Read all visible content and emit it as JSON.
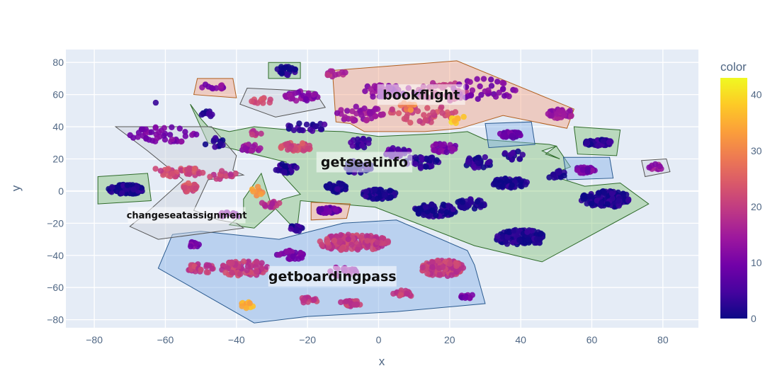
{
  "chart_data": {
    "type": "scatter",
    "xlabel": "x",
    "ylabel": "y",
    "xlim": [
      -88,
      90
    ],
    "ylim": [
      -85,
      88
    ],
    "xticks": [
      -80,
      -60,
      -40,
      -20,
      0,
      20,
      40,
      60,
      80
    ],
    "yticks": [
      -80,
      -60,
      -40,
      -20,
      0,
      20,
      40,
      60,
      80
    ],
    "xtick_labels": [
      "−80",
      "−60",
      "−40",
      "−20",
      "0",
      "20",
      "40",
      "60",
      "80"
    ],
    "ytick_labels": [
      "−80",
      "−60",
      "−40",
      "−20",
      "0",
      "20",
      "40",
      "60",
      "80"
    ],
    "grid": true,
    "colorbar": {
      "title": "color",
      "range": [
        0,
        43
      ],
      "ticks": [
        0,
        10,
        20,
        30,
        40
      ],
      "tick_labels": [
        "0",
        "10",
        "20",
        "30",
        "40"
      ],
      "colorscale": [
        "#0d0887",
        "#46039f",
        "#7201a8",
        "#9c179e",
        "#bd3786",
        "#d8576b",
        "#ed7953",
        "#fb9f3a",
        "#fdca26",
        "#f0f921"
      ]
    },
    "regions": [
      {
        "label": "bookflight",
        "fill": "#f4a582",
        "stroke": "#b2601f",
        "label_pos": [
          12,
          60
        ],
        "label_size": 19,
        "polygon": [
          [
            -13,
            75
          ],
          [
            22,
            81
          ],
          [
            55,
            51
          ],
          [
            53,
            39
          ],
          [
            35,
            47
          ],
          [
            23,
            39
          ],
          [
            18,
            38
          ],
          [
            13,
            37
          ],
          [
            8,
            37
          ],
          [
            -4,
            37
          ],
          [
            -8,
            42
          ],
          [
            -12,
            43
          ]
        ]
      },
      {
        "label": "getseatinfo",
        "fill": "#86c37a",
        "stroke": "#2f6b2a",
        "label_pos": [
          -4,
          18
        ],
        "label_size": 19,
        "polygon": [
          [
            -53,
            54
          ],
          [
            -50,
            45
          ],
          [
            -48,
            40
          ],
          [
            -42,
            37
          ],
          [
            -35,
            40
          ],
          [
            -25,
            38
          ],
          [
            -10,
            37
          ],
          [
            0,
            34
          ],
          [
            20,
            36
          ],
          [
            25,
            37
          ],
          [
            30,
            32
          ],
          [
            48,
            29
          ],
          [
            50,
            28
          ],
          [
            46,
            25
          ],
          [
            51,
            20
          ],
          [
            47,
            23
          ],
          [
            50,
            28
          ],
          [
            54,
            15
          ],
          [
            48,
            10
          ],
          [
            58,
            3
          ],
          [
            68,
            5
          ],
          [
            76,
            -8
          ],
          [
            46,
            -44
          ],
          [
            27,
            -34
          ],
          [
            -1,
            -10
          ],
          [
            -22,
            -6
          ],
          [
            -23,
            -25
          ],
          [
            -29,
            -11
          ],
          [
            -35,
            -23
          ],
          [
            -42,
            -21
          ],
          [
            -38,
            -14
          ],
          [
            -38,
            -5
          ],
          [
            -33,
            11
          ],
          [
            -30,
            -10
          ],
          [
            -27,
            -5
          ],
          [
            -22,
            -2
          ],
          [
            -27,
            10
          ],
          [
            -26,
            18
          ],
          [
            -48,
            30
          ]
        ]
      },
      {
        "label": "getboardingpass",
        "fill": "#86b2e6",
        "stroke": "#2a5a8f",
        "label_pos": [
          -13,
          -53
        ],
        "label_size": 19,
        "polygon": [
          [
            -62,
            -48
          ],
          [
            -58,
            -27
          ],
          [
            -50,
            -25
          ],
          [
            -28,
            -30
          ],
          [
            -10,
            -20
          ],
          [
            5,
            -18
          ],
          [
            25,
            -37
          ],
          [
            27,
            -46
          ],
          [
            30,
            -70
          ],
          [
            5,
            -75
          ],
          [
            -20,
            -78
          ],
          [
            -35,
            -82
          ]
        ]
      },
      {
        "label": "changeseatassignment",
        "fill": "#cdd3dc",
        "stroke": "#555555",
        "label_pos": [
          -54,
          -15
        ],
        "label_size": 13,
        "polygon": [
          [
            -74,
            40
          ],
          [
            -47,
            40
          ],
          [
            -40,
            22
          ],
          [
            -41,
            13
          ],
          [
            -38,
            10
          ],
          [
            -48,
            7
          ],
          [
            -52,
            -12
          ],
          [
            -45,
            -18
          ],
          [
            -40,
            -20
          ],
          [
            -38,
            -23
          ],
          [
            -62,
            -30
          ],
          [
            -70,
            -22
          ],
          [
            -65,
            -13
          ],
          [
            -55,
            7
          ],
          [
            -65,
            25
          ]
        ]
      },
      {
        "label": "",
        "fill": "#86c37a",
        "stroke": "#2f6b2a",
        "polygon": [
          [
            -79,
            9
          ],
          [
            -65,
            11
          ],
          [
            -64,
            -6
          ],
          [
            -79,
            -8
          ]
        ]
      },
      {
        "label": "",
        "fill": "#86c37a",
        "stroke": "#2f6b2a",
        "polygon": [
          [
            -31,
            80
          ],
          [
            -22,
            80
          ],
          [
            -22,
            70
          ],
          [
            -31,
            70
          ]
        ]
      },
      {
        "label": "",
        "fill": "#cdd3dc",
        "stroke": "#555555",
        "polygon": [
          [
            -37,
            64
          ],
          [
            -18,
            62
          ],
          [
            -15,
            52
          ],
          [
            -29,
            46
          ],
          [
            -39,
            54
          ]
        ]
      },
      {
        "label": "",
        "fill": "#f4a582",
        "stroke": "#b2601f",
        "polygon": [
          [
            -51,
            70
          ],
          [
            -41,
            70
          ],
          [
            -40,
            58
          ],
          [
            -52,
            60
          ]
        ]
      },
      {
        "label": "",
        "fill": "#86b2e6",
        "stroke": "#2a5a8f",
        "polygon": [
          [
            30,
            42
          ],
          [
            43,
            43
          ],
          [
            44,
            29
          ],
          [
            31,
            27
          ]
        ]
      },
      {
        "label": "",
        "fill": "#86c37a",
        "stroke": "#2f6b2a",
        "polygon": [
          [
            55,
            40
          ],
          [
            68,
            38
          ],
          [
            67,
            22
          ],
          [
            56,
            23
          ]
        ]
      },
      {
        "label": "",
        "fill": "#86b2e6",
        "stroke": "#2a5a8f",
        "polygon": [
          [
            52,
            21
          ],
          [
            65,
            21
          ],
          [
            66,
            8
          ],
          [
            53,
            7
          ]
        ]
      },
      {
        "label": "",
        "fill": "#cdd3dc",
        "stroke": "#555555",
        "polygon": [
          [
            74,
            19
          ],
          [
            81,
            20
          ],
          [
            82,
            12
          ],
          [
            75,
            9
          ]
        ]
      },
      {
        "label": "",
        "fill": "#f4a582",
        "stroke": "#b2601f",
        "polygon": [
          [
            -19,
            -7
          ],
          [
            -8,
            -8
          ],
          [
            -9,
            -17
          ],
          [
            -19,
            -18
          ]
        ]
      }
    ],
    "clusters": [
      {
        "cx": 18,
        "cy": 62,
        "rx": 8,
        "ry": 6,
        "n": 45,
        "c": 18
      },
      {
        "cx": 3,
        "cy": 62,
        "rx": 10,
        "ry": 4,
        "n": 45,
        "c": 12
      },
      {
        "cx": -5,
        "cy": 48,
        "rx": 7,
        "ry": 5,
        "n": 40,
        "c": 14
      },
      {
        "cx": 12,
        "cy": 48,
        "rx": 10,
        "ry": 6,
        "n": 45,
        "c": 22
      },
      {
        "cx": 30,
        "cy": 63,
        "rx": 9,
        "ry": 7,
        "n": 35,
        "c": 10
      },
      {
        "cx": 51,
        "cy": 48,
        "rx": 4,
        "ry": 3,
        "n": 35,
        "c": 14
      },
      {
        "cx": -12,
        "cy": 73,
        "rx": 3,
        "ry": 2,
        "n": 12,
        "c": 18
      },
      {
        "cx": 22,
        "cy": 45,
        "rx": 3,
        "ry": 3,
        "n": 8,
        "c": 38
      },
      {
        "cx": 8,
        "cy": 52,
        "rx": 3,
        "ry": 3,
        "n": 8,
        "c": 30
      },
      {
        "cx": -26,
        "cy": 75,
        "rx": 3,
        "ry": 3,
        "n": 22,
        "c": 1
      },
      {
        "cx": -22,
        "cy": 59,
        "rx": 5,
        "ry": 3,
        "n": 30,
        "c": 12
      },
      {
        "cx": -33,
        "cy": 56,
        "rx": 3,
        "ry": 2,
        "n": 12,
        "c": 22
      },
      {
        "cx": -46,
        "cy": 65,
        "rx": 4,
        "ry": 2,
        "n": 12,
        "c": 12
      },
      {
        "cx": -71,
        "cy": 1,
        "rx": 5,
        "ry": 3,
        "n": 110,
        "c": 1
      },
      {
        "cx": -60,
        "cy": 35,
        "rx": 10,
        "ry": 5,
        "n": 45,
        "c": 10
      },
      {
        "cx": -57,
        "cy": 12,
        "rx": 8,
        "ry": 3,
        "n": 40,
        "c": 22
      },
      {
        "cx": -53,
        "cy": 2,
        "rx": 2,
        "ry": 3,
        "n": 25,
        "c": 23
      },
      {
        "cx": -44,
        "cy": 10,
        "rx": 4,
        "ry": 3,
        "n": 15,
        "c": 20
      },
      {
        "cx": -42,
        "cy": -15,
        "rx": 3,
        "ry": 2,
        "n": 15,
        "c": 12
      },
      {
        "cx": -23,
        "cy": 28,
        "rx": 5,
        "ry": 3,
        "n": 40,
        "c": 22
      },
      {
        "cx": -20,
        "cy": 40,
        "rx": 6,
        "ry": 3,
        "n": 20,
        "c": 3
      },
      {
        "cx": -26,
        "cy": 14,
        "rx": 3,
        "ry": 3,
        "n": 30,
        "c": 2
      },
      {
        "cx": -23,
        "cy": -23,
        "rx": 2,
        "ry": 2,
        "n": 15,
        "c": 2
      },
      {
        "cx": -30,
        "cy": -8,
        "rx": 3,
        "ry": 2,
        "n": 15,
        "c": 18
      },
      {
        "cx": -12,
        "cy": 2,
        "rx": 3,
        "ry": 3,
        "n": 40,
        "c": 1
      },
      {
        "cx": 0,
        "cy": -2,
        "rx": 5,
        "ry": 3,
        "n": 70,
        "c": 1
      },
      {
        "cx": 16,
        "cy": -12,
        "rx": 6,
        "ry": 4,
        "n": 70,
        "c": 1
      },
      {
        "cx": 26,
        "cy": -8,
        "rx": 4,
        "ry": 3,
        "n": 40,
        "c": 1
      },
      {
        "cx": 37,
        "cy": 5,
        "rx": 5,
        "ry": 3,
        "n": 70,
        "c": 1
      },
      {
        "cx": 40,
        "cy": -29,
        "rx": 7,
        "ry": 5,
        "n": 120,
        "c": 1
      },
      {
        "cx": 64,
        "cy": -5,
        "rx": 7,
        "ry": 5,
        "n": 120,
        "c": 1
      },
      {
        "cx": 5,
        "cy": 24,
        "rx": 4,
        "ry": 3,
        "n": 30,
        "c": 7
      },
      {
        "cx": -5,
        "cy": 30,
        "rx": 3,
        "ry": 3,
        "n": 25,
        "c": 4
      },
      {
        "cx": 18,
        "cy": 27,
        "rx": 4,
        "ry": 3,
        "n": 30,
        "c": 10
      },
      {
        "cx": 28,
        "cy": 18,
        "rx": 4,
        "ry": 4,
        "n": 35,
        "c": 2
      },
      {
        "cx": 12,
        "cy": 18,
        "rx": 5,
        "ry": 4,
        "n": 35,
        "c": 2
      },
      {
        "cx": -6,
        "cy": 15,
        "rx": 4,
        "ry": 4,
        "n": 35,
        "c": 2
      },
      {
        "cx": 38,
        "cy": 22,
        "rx": 3,
        "ry": 3,
        "n": 15,
        "c": 2
      },
      {
        "cx": 50,
        "cy": 10,
        "rx": 3,
        "ry": 3,
        "n": 15,
        "c": 2
      },
      {
        "cx": -46,
        "cy": 30,
        "rx": 3,
        "ry": 3,
        "n": 12,
        "c": 2
      },
      {
        "cx": -36,
        "cy": 26,
        "rx": 3,
        "ry": 3,
        "n": 15,
        "c": 14
      },
      {
        "cx": -34,
        "cy": 36,
        "rx": 2,
        "ry": 2,
        "n": 8,
        "c": 18
      },
      {
        "cx": -34,
        "cy": 0,
        "rx": 2,
        "ry": 3,
        "n": 8,
        "c": 32
      },
      {
        "cx": -48,
        "cy": 48,
        "rx": 2,
        "ry": 2,
        "n": 10,
        "c": 2
      },
      {
        "cx": -63,
        "cy": 55,
        "rx": 0.5,
        "ry": 0.5,
        "n": 1,
        "c": 2
      },
      {
        "cx": -14,
        "cy": -12,
        "rx": 3,
        "ry": 2,
        "n": 50,
        "c": 8
      },
      {
        "cx": 37,
        "cy": 35,
        "rx": 3,
        "ry": 2,
        "n": 40,
        "c": 8
      },
      {
        "cx": 62,
        "cy": 30,
        "rx": 4,
        "ry": 2,
        "n": 60,
        "c": 2
      },
      {
        "cx": 58,
        "cy": 13,
        "rx": 3,
        "ry": 2,
        "n": 40,
        "c": 10
      },
      {
        "cx": 78,
        "cy": 15,
        "rx": 2,
        "ry": 2,
        "n": 12,
        "c": 14
      },
      {
        "cx": -7,
        "cy": -32,
        "rx": 10,
        "ry": 5,
        "n": 170,
        "c": 20
      },
      {
        "cx": 18,
        "cy": -48,
        "rx": 6,
        "ry": 5,
        "n": 110,
        "c": 20
      },
      {
        "cx": -8,
        "cy": -70,
        "rx": 3,
        "ry": 2,
        "n": 35,
        "c": 20
      },
      {
        "cx": -38,
        "cy": -48,
        "rx": 7,
        "ry": 5,
        "n": 70,
        "c": 20
      },
      {
        "cx": -25,
        "cy": -40,
        "rx": 4,
        "ry": 3,
        "n": 30,
        "c": 10
      },
      {
        "cx": -50,
        "cy": -48,
        "rx": 4,
        "ry": 3,
        "n": 25,
        "c": 20
      },
      {
        "cx": -52,
        "cy": -33,
        "rx": 2,
        "ry": 2,
        "n": 10,
        "c": 10
      },
      {
        "cx": 7,
        "cy": -64,
        "rx": 3,
        "ry": 3,
        "n": 20,
        "c": 20
      },
      {
        "cx": -20,
        "cy": -68,
        "rx": 3,
        "ry": 2,
        "n": 15,
        "c": 20
      },
      {
        "cx": -37,
        "cy": -71,
        "rx": 2,
        "ry": 2,
        "n": 10,
        "c": 36
      },
      {
        "cx": 25,
        "cy": -66,
        "rx": 2,
        "ry": 2,
        "n": 10,
        "c": 10
      },
      {
        "cx": -10,
        "cy": -50,
        "rx": 4,
        "ry": 3,
        "n": 20,
        "c": 12
      }
    ],
    "annotations": [
      "bookflight",
      "getseatinfo",
      "changeseatassignment",
      "getboardingpass"
    ]
  }
}
